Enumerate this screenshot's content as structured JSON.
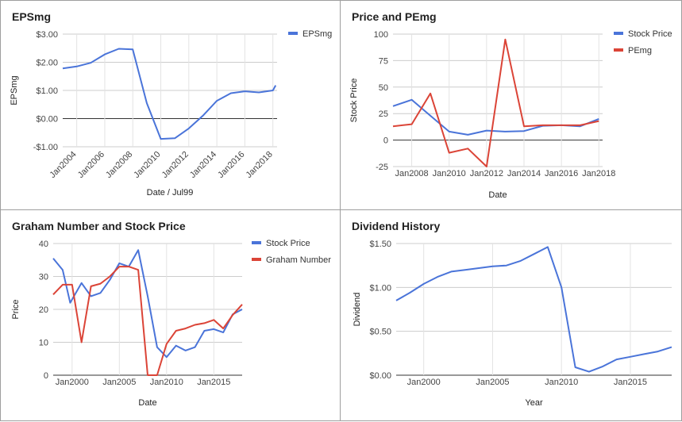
{
  "chart_data": [
    {
      "id": "eps",
      "type": "line",
      "title": "EPSmg",
      "xlabel": "Date / Jul99",
      "ylabel": "EPSmg",
      "xlim": [
        2003.0,
        2018.3
      ],
      "ylim": [
        -1.0,
        3.0
      ],
      "yticks": [
        3,
        2,
        1,
        0,
        -1
      ],
      "ytick_labels": [
        "$3.00",
        "$2.00",
        "$1.00",
        "$0.00",
        "-$1.00"
      ],
      "xticks": [
        2004,
        2006,
        2008,
        2010,
        2012,
        2014,
        2016,
        2018
      ],
      "xtick_labels": [
        "Jan2004",
        "Jan2006",
        "Jan2008",
        "Jan2010",
        "Jan2012",
        "Jan2014",
        "Jan2016",
        "Jan2018"
      ],
      "x_label_rotation": -45,
      "grid": true,
      "legend": "top-right",
      "series": [
        {
          "name": "EPSmg",
          "color": "#4a74d9",
          "x": [
            2003.0,
            2004.0,
            2005.0,
            2006.0,
            2007.0,
            2008.0,
            2009.0,
            2010.0,
            2011.0,
            2012.0,
            2013.0,
            2014.0,
            2015.0,
            2016.0,
            2017.0,
            2018.0,
            2018.2
          ],
          "y": [
            1.78,
            1.85,
            1.98,
            2.28,
            2.48,
            2.46,
            0.55,
            -0.72,
            -0.7,
            -0.35,
            0.1,
            0.63,
            0.9,
            0.97,
            0.93,
            1.0,
            1.18
          ]
        }
      ]
    },
    {
      "id": "price_pe",
      "type": "line",
      "title": "Price and PEmg",
      "xlabel": "Date",
      "ylabel": "Stock Price",
      "xlim": [
        2007.0,
        2018.2
      ],
      "ylim": [
        -25,
        100
      ],
      "yticks": [
        100,
        75,
        50,
        25,
        0,
        -25
      ],
      "ytick_labels": [
        "100",
        "75",
        "50",
        "25",
        "0",
        "-25"
      ],
      "xticks": [
        2008,
        2010,
        2012,
        2014,
        2016,
        2018
      ],
      "xtick_labels": [
        "Jan2008",
        "Jan2010",
        "Jan2012",
        "Jan2014",
        "Jan2016",
        "Jan2018"
      ],
      "grid": true,
      "legend": "top-right",
      "series": [
        {
          "name": "Stock Price",
          "color": "#4a74d9",
          "x": [
            2007.0,
            2008.0,
            2009.0,
            2010.0,
            2011.0,
            2012.0,
            2013.0,
            2014.0,
            2015.0,
            2016.0,
            2017.0,
            2018.0
          ],
          "y": [
            32,
            38,
            23,
            8,
            5,
            9,
            8,
            8.5,
            13.5,
            14,
            13,
            20
          ]
        },
        {
          "name": "PEmg",
          "color": "#db4437",
          "x": [
            2007.0,
            2008.0,
            2009.0,
            2010.0,
            2011.0,
            2012.0,
            2013.0,
            2014.0,
            2015.0,
            2016.0,
            2017.0,
            2018.0
          ],
          "y": [
            13,
            15,
            44,
            -12,
            -8,
            -25,
            95,
            13,
            14,
            14,
            14,
            18
          ]
        }
      ]
    },
    {
      "id": "graham",
      "type": "line",
      "title": "Graham Number and Stock Price",
      "xlabel": "Date",
      "ylabel": "Price",
      "xlim": [
        1998.0,
        2018.0
      ],
      "ylim": [
        0,
        40
      ],
      "yticks": [
        40,
        30,
        20,
        10,
        0
      ],
      "ytick_labels": [
        "40",
        "30",
        "20",
        "10",
        "0"
      ],
      "xticks": [
        2000,
        2005,
        2010,
        2015
      ],
      "xtick_labels": [
        "Jan2000",
        "Jan2005",
        "Jan2010",
        "Jan2015"
      ],
      "grid": true,
      "legend": "top-right",
      "series": [
        {
          "name": "Stock Price",
          "color": "#4a74d9",
          "x": [
            1998.0,
            1999.0,
            1999.8,
            2001.0,
            2002.0,
            2003.0,
            2004.0,
            2005.0,
            2006.0,
            2007.0,
            2008.0,
            2009.0,
            2010.0,
            2011.0,
            2012.0,
            2013.0,
            2014.0,
            2015.0,
            2016.0,
            2017.0,
            2018.0
          ],
          "y": [
            35.5,
            32,
            22,
            28,
            24,
            25,
            29,
            34,
            33,
            38,
            24,
            8.5,
            5.5,
            9,
            7.5,
            8.5,
            13.5,
            14,
            13,
            18.5,
            20
          ]
        },
        {
          "name": "Graham Number",
          "color": "#db4437",
          "x": [
            1998.0,
            1999.0,
            2000.0,
            2001.0,
            2002.0,
            2003.0,
            2004.0,
            2005.0,
            2006.0,
            2007.0,
            2008.0,
            2009.0,
            2010.0,
            2011.0,
            2012.0,
            2013.0,
            2014.0,
            2015.0,
            2016.0,
            2017.0,
            2018.0
          ],
          "y": [
            24.5,
            27.5,
            27.5,
            10,
            27,
            27.8,
            30,
            33,
            33,
            32,
            0,
            0,
            9.5,
            13.5,
            14.2,
            15.3,
            15.8,
            16.8,
            14.2,
            18.3,
            21.5
          ]
        }
      ]
    },
    {
      "id": "dividend",
      "type": "line",
      "title": "Dividend History",
      "xlabel": "Year",
      "ylabel": "Dividend",
      "xlim": [
        1998.0,
        2018.0
      ],
      "ylim": [
        0,
        1.5
      ],
      "yticks": [
        1.5,
        1.0,
        0.5,
        0.0
      ],
      "ytick_labels": [
        "$1.50",
        "$1.00",
        "$0.50",
        "$0.00"
      ],
      "xticks": [
        2000,
        2005,
        2010,
        2015
      ],
      "xtick_labels": [
        "Jan2000",
        "Jan2005",
        "Jan2010",
        "Jan2015"
      ],
      "grid": true,
      "legend": "none",
      "series": [
        {
          "name": "",
          "color": "#4a74d9",
          "x": [
            1998.0,
            1999.0,
            2000.0,
            2001.0,
            2002.0,
            2003.0,
            2004.0,
            2005.0,
            2006.0,
            2007.0,
            2008.0,
            2009.0,
            2010.0,
            2011.0,
            2012.0,
            2013.0,
            2014.0,
            2015.0,
            2016.0,
            2017.0,
            2018.0
          ],
          "y": [
            0.85,
            0.94,
            1.04,
            1.12,
            1.18,
            1.2,
            1.22,
            1.24,
            1.25,
            1.3,
            1.38,
            1.46,
            1.0,
            0.09,
            0.04,
            0.1,
            0.18,
            0.21,
            0.24,
            0.27,
            0.32
          ]
        }
      ]
    }
  ]
}
